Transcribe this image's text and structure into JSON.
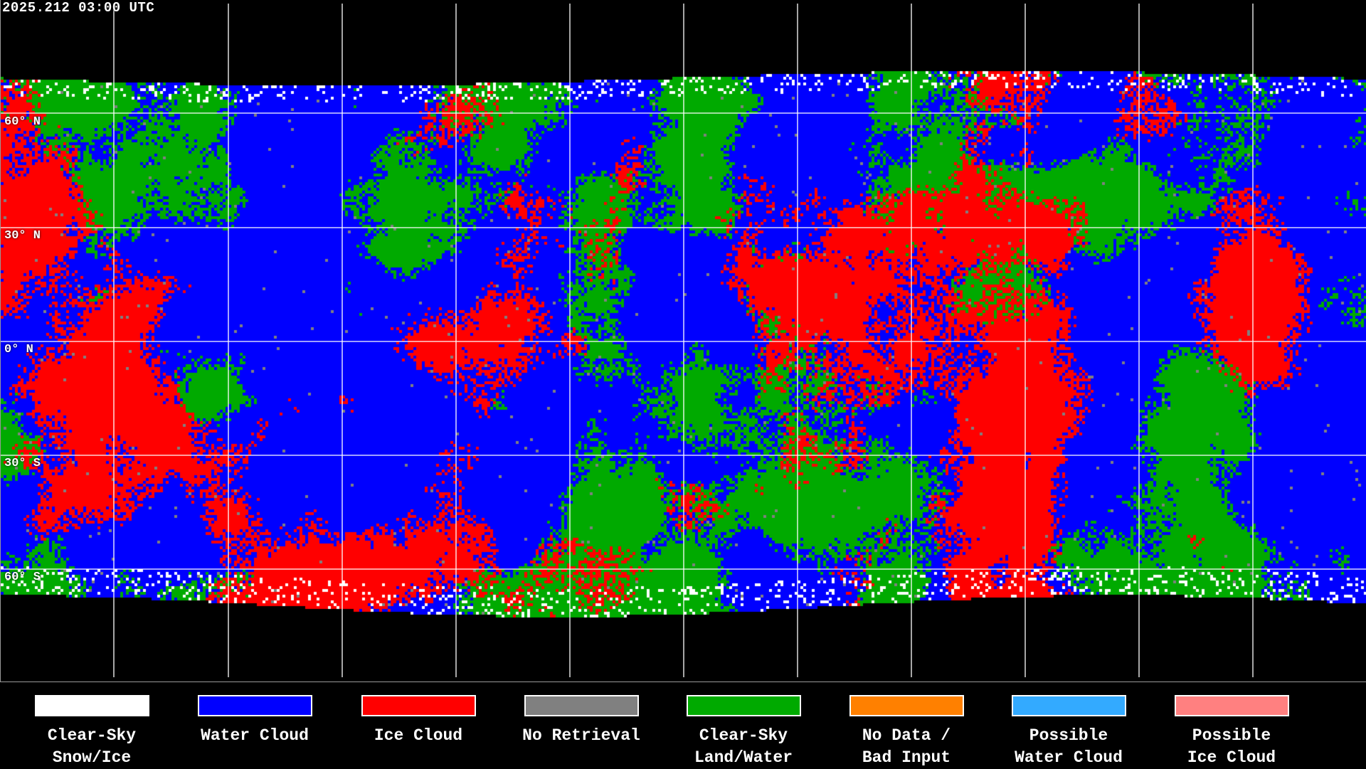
{
  "header": {
    "timestamp": "2025.212 03:00 UTC"
  },
  "latitude_labels": [
    "60° N",
    "30° N",
    "0° N",
    "30° S",
    "60° S"
  ],
  "map": {
    "projection": "equirectangular",
    "coastlines": true,
    "gridlines": true,
    "background_color": "#000000",
    "gridline_color": "#ffffff"
  },
  "legend": [
    {
      "line1": "Clear-Sky",
      "line2": "Snow/Ice",
      "color": "#ffffff"
    },
    {
      "line1": "Water Cloud",
      "line2": "",
      "color": "#0000ff"
    },
    {
      "line1": "Ice Cloud",
      "line2": "",
      "color": "#ff0000"
    },
    {
      "line1": "No Retrieval",
      "line2": "",
      "color": "#808080"
    },
    {
      "line1": "Clear-Sky",
      "line2": "Land/Water",
      "color": "#00aa00"
    },
    {
      "line1": "No Data /",
      "line2": "Bad Input",
      "color": "#ff8000"
    },
    {
      "line1": "Possible",
      "line2": "Water Cloud",
      "color": "#33aaff"
    },
    {
      "line1": "Possible",
      "line2": "Ice Cloud",
      "color": "#ff8080"
    }
  ]
}
